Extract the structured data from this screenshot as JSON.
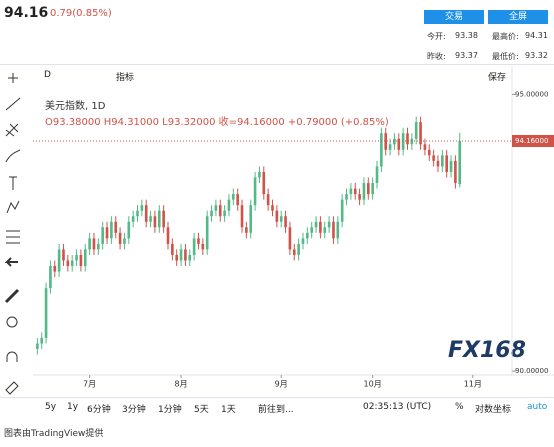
{
  "header": {
    "price": "94.16",
    "change": "0.79(0.85%)",
    "buttons": [
      "交易",
      "全屏"
    ],
    "stats": [
      [
        "今开:",
        "93.38"
      ],
      [
        "最高价:",
        "94.31"
      ],
      [
        "昨收:",
        "93.37"
      ],
      [
        "最低价:",
        "93.32"
      ]
    ]
  },
  "toolbar": {
    "interval": "D",
    "indicators": "指标",
    "save": "保存"
  },
  "bottom_bar": {
    "ranges": [
      "5y",
      "1y",
      "6分钟",
      "3分钟",
      "1分钟",
      "5天",
      "1天"
    ],
    "goto": "前往到...",
    "time": "02:35:13 (UTC)",
    "percent": "%",
    "log": "对数坐标",
    "auto": "auto"
  },
  "footer": "图表由TradingView提供",
  "watermark": "FX168",
  "chart_data": {
    "type": "candlestick",
    "title": "美元指数, 1D",
    "legend_text": "O93.38000 H94.31000 L93.32000 收=94.16000 +0.79000 (+0.85%)",
    "last_price_label": "94.16000",
    "up_color": "#53b987",
    "down_color": "#d0534a",
    "open": [
      90.4,
      90.5,
      90.6,
      91.5,
      91.9,
      91.8,
      92.2,
      92.0,
      91.9,
      92.0,
      92.1,
      91.9,
      92.2,
      92.4,
      92.2,
      92.3,
      92.6,
      92.4,
      92.7,
      92.5,
      92.3,
      92.4,
      92.7,
      92.8,
      92.9,
      93.0,
      92.7,
      92.8,
      92.6,
      92.9,
      92.6,
      92.3,
      92.1,
      92.0,
      92.2,
      92.0,
      92.1,
      92.4,
      92.3,
      92.2,
      92.8,
      92.9,
      93.0,
      92.8,
      92.9,
      93.1,
      93.2,
      93.0,
      92.6,
      92.5,
      93.0,
      93.5,
      93.6,
      93.2,
      93.0,
      92.9,
      92.7,
      92.8,
      92.6,
      92.2,
      92.1,
      92.3,
      92.4,
      92.5,
      92.6,
      92.7,
      92.5,
      92.6,
      92.7,
      92.4,
      92.7,
      93.1,
      93.2,
      93.3,
      93.2,
      93.1,
      93.4,
      93.2,
      93.4,
      93.7,
      94.3,
      94.0,
      94.1,
      94.2,
      94.0,
      94.3,
      94.1,
      94.2,
      94.5,
      94.1,
      94.0,
      93.9,
      93.8,
      93.7,
      93.9,
      93.6,
      93.8,
      93.38
    ],
    "high": [
      90.6,
      90.7,
      91.6,
      92.0,
      92.0,
      92.3,
      92.3,
      92.1,
      92.1,
      92.2,
      92.2,
      92.3,
      92.5,
      92.5,
      92.4,
      92.7,
      92.7,
      92.8,
      92.8,
      92.6,
      92.5,
      92.8,
      92.9,
      93.0,
      93.1,
      93.1,
      92.9,
      92.9,
      93.0,
      93.0,
      92.7,
      92.4,
      92.2,
      92.3,
      92.3,
      92.2,
      92.5,
      92.5,
      92.4,
      92.9,
      93.0,
      93.1,
      93.1,
      93.0,
      93.2,
      93.3,
      93.3,
      93.1,
      92.7,
      93.1,
      93.6,
      93.7,
      93.7,
      93.3,
      93.1,
      93.0,
      92.9,
      92.9,
      92.7,
      92.3,
      92.4,
      92.5,
      92.6,
      92.7,
      92.8,
      92.8,
      92.7,
      92.8,
      92.8,
      92.8,
      93.2,
      93.3,
      93.4,
      93.4,
      93.3,
      93.5,
      93.5,
      93.5,
      93.8,
      94.4,
      94.4,
      94.2,
      94.3,
      94.3,
      94.4,
      94.4,
      94.3,
      94.6,
      94.6,
      94.2,
      94.1,
      94.0,
      93.9,
      94.0,
      94.0,
      93.9,
      93.9,
      94.31
    ],
    "low": [
      90.3,
      90.4,
      90.5,
      91.4,
      91.7,
      91.7,
      91.9,
      91.8,
      91.8,
      91.9,
      91.8,
      91.8,
      92.1,
      92.1,
      92.1,
      92.2,
      92.3,
      92.3,
      92.4,
      92.2,
      92.2,
      92.3,
      92.6,
      92.7,
      92.8,
      92.6,
      92.6,
      92.5,
      92.5,
      92.5,
      92.2,
      92.0,
      91.9,
      91.9,
      91.9,
      91.9,
      92.0,
      92.2,
      92.1,
      92.1,
      92.7,
      92.8,
      92.7,
      92.7,
      92.8,
      93.0,
      92.9,
      92.5,
      92.4,
      92.4,
      92.9,
      93.4,
      93.1,
      92.9,
      92.8,
      92.6,
      92.6,
      92.5,
      92.1,
      92.0,
      92.0,
      92.2,
      92.3,
      92.4,
      92.5,
      92.4,
      92.4,
      92.5,
      92.3,
      92.3,
      92.6,
      93.0,
      93.1,
      93.1,
      93.0,
      93.0,
      93.1,
      93.1,
      93.3,
      93.6,
      93.9,
      93.9,
      94.0,
      93.9,
      93.9,
      94.0,
      94.0,
      94.1,
      94.0,
      93.9,
      93.8,
      93.7,
      93.6,
      93.6,
      93.5,
      93.5,
      93.3,
      93.32
    ],
    "close": [
      90.5,
      90.6,
      91.5,
      91.9,
      91.8,
      92.2,
      92.0,
      91.9,
      92.0,
      92.1,
      91.9,
      92.2,
      92.4,
      92.2,
      92.3,
      92.6,
      92.4,
      92.7,
      92.5,
      92.3,
      92.4,
      92.7,
      92.8,
      92.9,
      93.0,
      92.7,
      92.8,
      92.6,
      92.9,
      92.6,
      92.3,
      92.1,
      92.0,
      92.2,
      92.0,
      92.1,
      92.4,
      92.3,
      92.2,
      92.8,
      92.9,
      93.0,
      92.8,
      92.9,
      93.1,
      93.2,
      93.0,
      92.6,
      92.5,
      93.0,
      93.5,
      93.6,
      93.2,
      93.0,
      92.9,
      92.7,
      92.8,
      92.6,
      92.2,
      92.1,
      92.3,
      92.4,
      92.5,
      92.6,
      92.7,
      92.5,
      92.6,
      92.7,
      92.4,
      92.7,
      93.1,
      93.2,
      93.3,
      93.2,
      93.1,
      93.4,
      93.2,
      93.4,
      93.7,
      94.3,
      94.0,
      94.1,
      94.2,
      94.0,
      94.3,
      94.1,
      94.2,
      94.5,
      94.1,
      94.0,
      93.9,
      93.8,
      93.7,
      93.9,
      93.6,
      93.8,
      93.4,
      94.16
    ],
    "xlim": [
      -1,
      109
    ],
    "xticks": [
      {
        "value": 12,
        "label": "7月"
      },
      {
        "value": 33,
        "label": "8月"
      },
      {
        "value": 56,
        "label": "9月"
      },
      {
        "value": 77,
        "label": "10月"
      },
      {
        "value": 100,
        "label": "11月"
      }
    ],
    "ylim": [
      89.93,
      95.19
    ],
    "yticks": [
      {
        "value": 90,
        "label": "90.00000"
      },
      {
        "value": 95,
        "label": "95.00000"
      }
    ],
    "grid": false
  }
}
